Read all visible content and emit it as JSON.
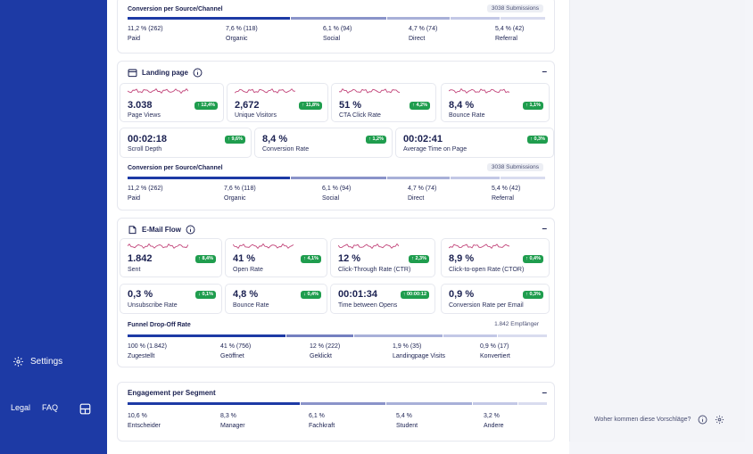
{
  "sidebar": {
    "settings": "Settings",
    "legal": "Legal",
    "faq": "FAQ"
  },
  "right": {
    "suggestion": "Woher kommen diese Vorschläge?"
  },
  "top": {
    "title": "Conversion per Source/Channel",
    "pill": "3038 Submissions",
    "stats": [
      {
        "v": "11,2 % (262)",
        "l": "Paid"
      },
      {
        "v": "7,6 % (118)",
        "l": "Organic"
      },
      {
        "v": "6,1 % (94)",
        "l": "Social"
      },
      {
        "v": "4,7 % (74)",
        "l": "Direct"
      },
      {
        "v": "5,4 % (42)",
        "l": "Referral"
      }
    ]
  },
  "landing": {
    "title": "Landing page",
    "kpis": [
      {
        "v": "3.038",
        "l": "Page Views",
        "b": "↑ 12,4%"
      },
      {
        "v": "2,672",
        "l": "Unique Visitors",
        "b": "↑ 11,8%"
      },
      {
        "v": "51 %",
        "l": "CTA Click Rate",
        "b": "↑ 4,2%"
      },
      {
        "v": "8,4 %",
        "l": "Bounce Rate",
        "b": "↑ 1,1%"
      },
      {
        "v": "00:02:18",
        "l": "Scroll Depth",
        "b": "↑ 9,6%"
      },
      {
        "v": "8,4 %",
        "l": "Conversion Rate",
        "b": "↑ 1,2%"
      },
      {
        "v": "00:02:41",
        "l": "Average Time on Page",
        "b": "↑ 0,3%"
      }
    ],
    "conv_title": "Conversion per Source/Channel",
    "pill": "3038 Submissions",
    "stats": [
      {
        "v": "11,2 % (262)",
        "l": "Paid"
      },
      {
        "v": "7,6 % (118)",
        "l": "Organic"
      },
      {
        "v": "6,1 % (94)",
        "l": "Social"
      },
      {
        "v": "4,7 % (74)",
        "l": "Direct"
      },
      {
        "v": "5,4 % (42)",
        "l": "Referral"
      }
    ]
  },
  "email": {
    "title": "E-Mail Flow",
    "kpis": [
      {
        "v": "1.842",
        "l": "Sent",
        "b": "↑ 8,4%"
      },
      {
        "v": "41 %",
        "l": "Open Rate",
        "b": "↑ 4,1%"
      },
      {
        "v": "12 %",
        "l": "Click-Through Rate (CTR)",
        "b": "↑ 2,3%"
      },
      {
        "v": "8,9 %",
        "l": "Click-to-open Rate (CTOR)",
        "b": "↑ 0,4%"
      },
      {
        "v": "0,3 %",
        "l": "Unsubscribe Rate",
        "b": "↓ 0,1%"
      },
      {
        "v": "4,8 %",
        "l": "Bounce Rate",
        "b": "↓ 0,4%"
      },
      {
        "v": "00:01:34",
        "l": "Time between Opens",
        "b": "↑ 00:00:12"
      },
      {
        "v": "0,9 %",
        "l": "Conversion Rate per Email",
        "b": "↑ 0,3%"
      }
    ],
    "funnel_title": "Funnel Drop-Off Rate",
    "funnel_count": "1.842 Empfänger",
    "stats": [
      {
        "v": "100 % (1.842)",
        "l": "Zugestellt"
      },
      {
        "v": "41 % (756)",
        "l": "Geöffnet"
      },
      {
        "v": "12 % (222)",
        "l": "Geklickt"
      },
      {
        "v": "1,9 % (35)",
        "l": "Landingpage Visits"
      },
      {
        "v": "0,9 % (17)",
        "l": "Konvertiert"
      }
    ]
  },
  "segment": {
    "title": "Engagement per Segment",
    "stats": [
      {
        "v": "10,6 %",
        "l": "Entscheider"
      },
      {
        "v": "8,3 %",
        "l": "Manager"
      },
      {
        "v": "6,1 %",
        "l": "Fachkraft"
      },
      {
        "v": "5,4 %",
        "l": "Student"
      },
      {
        "v": "3,2 %",
        "l": "Andere"
      }
    ]
  },
  "colors": {
    "sidebar": "#1d3aa5",
    "badge": "#1f9d4e",
    "spark": "#c2457a",
    "navy": "#1b2151"
  }
}
